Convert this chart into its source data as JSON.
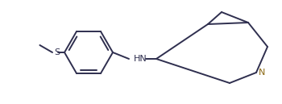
{
  "bg_color": "#ffffff",
  "line_color": "#2f2f4f",
  "n_color": "#8B6914",
  "s_color": "#2f2f4f",
  "hn_text": "HN",
  "n_text": "N",
  "s_text": "S",
  "figsize": [
    3.5,
    1.29
  ],
  "dpi": 100,
  "lw": 1.4
}
